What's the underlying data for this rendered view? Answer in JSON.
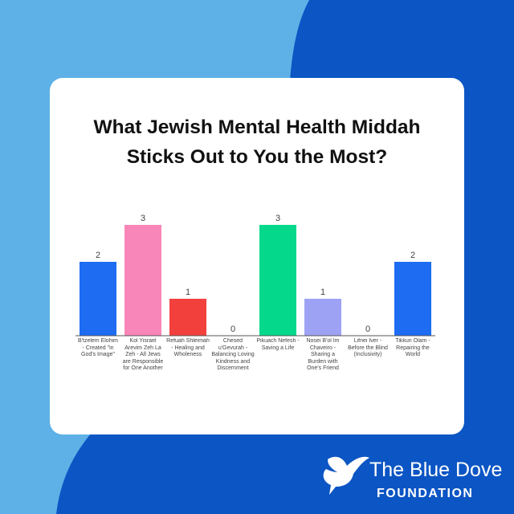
{
  "chart_data": {
    "type": "bar",
    "title": "What Jewish Mental Health Middah Sticks Out to You the Most?",
    "categories": [
      "B'tzelem Elohim - Created \"in God's Image\"",
      "Kol Yisrael Arevim Zeh La Zeh - All Jews are Responsible for One Another",
      "Refuah Shleimah - Healing and Wholeness",
      "Chesed u'Gevurah - Balancing Loving Kindness and Discernment",
      "Pikuach Nefesh - Saving a Life",
      "Nosei B'ol Im Chaveiro - Sharing a Burden with One's Friend",
      "Lifnei Iver - Before the Blind (Inclusivity)",
      "Tikkun Olam - Repairing the World"
    ],
    "values": [
      2,
      3,
      1,
      0,
      3,
      1,
      0,
      2
    ],
    "colors": [
      "#1d6cf2",
      "#f986b8",
      "#f2403c",
      "#1d6cf2",
      "#04d98b",
      "#9ea2f4",
      "#1d6cf2",
      "#1d6cf2"
    ],
    "ylim": [
      0,
      3
    ]
  },
  "logo": {
    "name": "The Blue Dove",
    "tagline": "FOUNDATION"
  }
}
